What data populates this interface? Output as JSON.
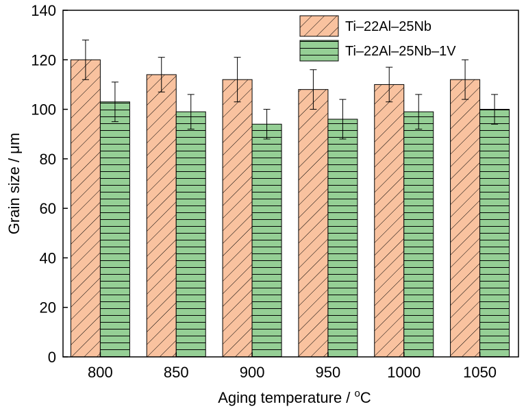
{
  "chart_data": {
    "type": "bar",
    "title": "",
    "xlabel_text": "Aging temperature / ",
    "xlabel_unit_sup": "o",
    "xlabel_unit": "C",
    "ylabel": "Grain size / μm",
    "categories": [
      "800",
      "850",
      "900",
      "950",
      "1000",
      "1050"
    ],
    "ylim": [
      0,
      140
    ],
    "yticks": [
      "0",
      "20",
      "40",
      "60",
      "80",
      "100",
      "120",
      "140"
    ],
    "grid": false,
    "legend_position": "top-right",
    "series": [
      {
        "name": "Ti–22Al–25Nb",
        "values": [
          120,
          114,
          112,
          108,
          110,
          112
        ],
        "errors": [
          8,
          7,
          9,
          8,
          7,
          8
        ],
        "fill": "#f9c29f",
        "pattern": "diagonal-hatch"
      },
      {
        "name": "Ti–22Al–25Nb–1V",
        "values": [
          103,
          99,
          94,
          96,
          99,
          100
        ],
        "errors": [
          8,
          7,
          6,
          8,
          7,
          6
        ],
        "fill": "#95cf95",
        "pattern": "horizontal-hatch"
      }
    ]
  }
}
